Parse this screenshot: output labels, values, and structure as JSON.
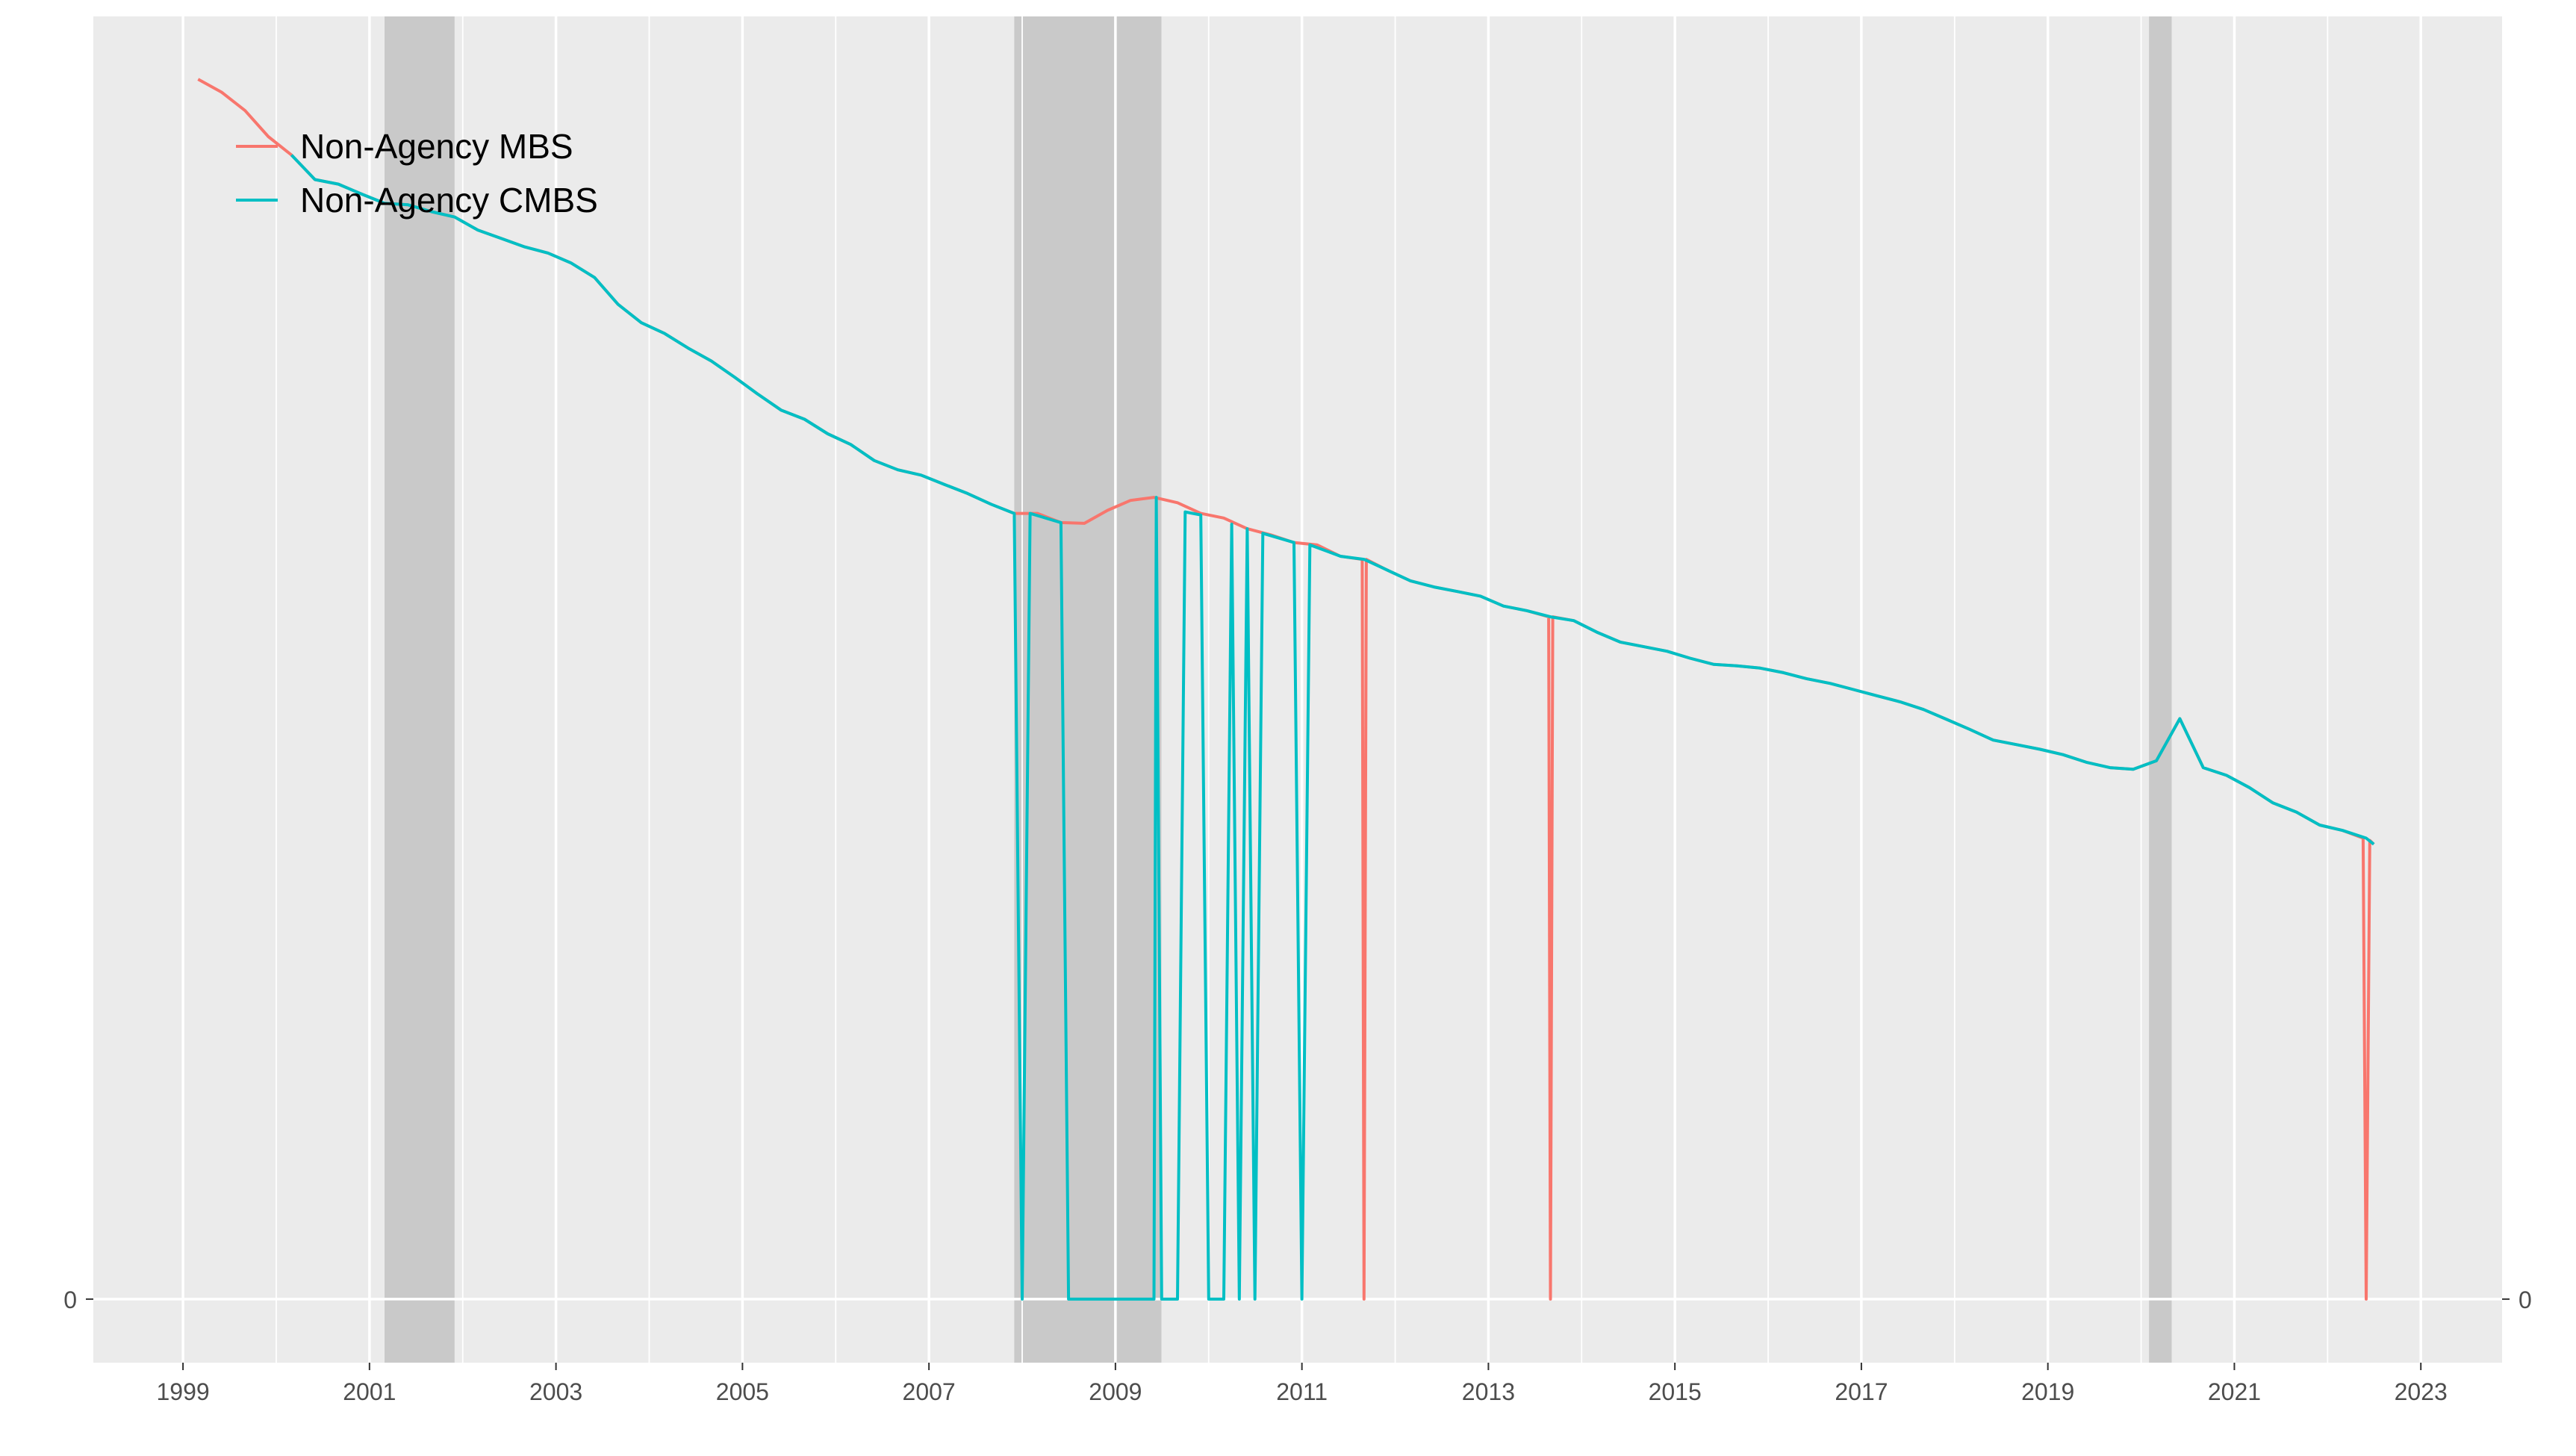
{
  "chart_data": {
    "type": "line",
    "title": "",
    "xlabel": "",
    "ylabel": "",
    "x_axis": {
      "min": "1998-01-15",
      "max": "2023-11-15",
      "ticks": [
        "1999",
        "2001",
        "2003",
        "2005",
        "2007",
        "2009",
        "2011",
        "2013",
        "2015",
        "2017",
        "2019",
        "2021",
        "2023"
      ]
    },
    "y_axis": {
      "min": -8.3,
      "max": 167.5,
      "ticks": [
        0
      ],
      "tick_labels": [
        "0"
      ],
      "secondary_tick_labels": [
        "0"
      ]
    },
    "grid": true,
    "legend": {
      "placement": "top-left",
      "entries": [
        {
          "label": "Non-Agency MBS",
          "color": "#F8766D"
        },
        {
          "label": "Non-Agency CMBS",
          "color": "#00BFC4"
        }
      ]
    },
    "recession_shading": [
      {
        "start": "2001-03-01",
        "end": "2001-11-30"
      },
      {
        "start": "2007-12-01",
        "end": "2009-06-30"
      },
      {
        "start": "2020-02-01",
        "end": "2020-04-30"
      }
    ],
    "series": [
      {
        "name": "Non-Agency MBS",
        "color": "#F8766D",
        "points": [
          [
            "1999-03-01",
            159.3
          ],
          [
            "1999-06-01",
            157.6
          ],
          [
            "1999-09-01",
            155.2
          ],
          [
            "1999-12-01",
            151.8
          ],
          [
            "2000-03-01",
            149.4
          ],
          [
            "2000-06-01",
            146.2
          ],
          [
            "2000-09-01",
            145.6
          ],
          [
            "2000-12-01",
            144.3
          ],
          [
            "2001-03-01",
            143.1
          ],
          [
            "2001-06-01",
            142.9
          ],
          [
            "2001-09-01",
            142.0
          ],
          [
            "2001-12-01",
            141.3
          ],
          [
            "2002-03-01",
            139.6
          ],
          [
            "2002-06-01",
            138.5
          ],
          [
            "2002-09-01",
            137.4
          ],
          [
            "2002-12-01",
            136.6
          ],
          [
            "2003-03-01",
            135.3
          ],
          [
            "2003-06-01",
            133.4
          ],
          [
            "2003-09-01",
            129.9
          ],
          [
            "2003-12-01",
            127.5
          ],
          [
            "2004-03-01",
            126.1
          ],
          [
            "2004-06-01",
            124.2
          ],
          [
            "2004-09-01",
            122.5
          ],
          [
            "2004-12-01",
            120.4
          ],
          [
            "2005-03-01",
            118.2
          ],
          [
            "2005-06-01",
            116.1
          ],
          [
            "2005-09-01",
            114.9
          ],
          [
            "2005-12-01",
            113.0
          ],
          [
            "2006-03-01",
            111.6
          ],
          [
            "2006-06-01",
            109.5
          ],
          [
            "2006-09-01",
            108.3
          ],
          [
            "2006-12-01",
            107.6
          ],
          [
            "2007-03-01",
            106.4
          ],
          [
            "2007-06-01",
            105.2
          ],
          [
            "2007-09-01",
            103.8
          ],
          [
            "2007-12-01",
            102.6
          ],
          [
            "2008-03-01",
            102.6
          ],
          [
            "2008-06-01",
            101.4
          ],
          [
            "2008-09-01",
            101.3
          ],
          [
            "2008-12-01",
            103.0
          ],
          [
            "2009-03-01",
            104.3
          ],
          [
            "2009-06-01",
            104.7
          ],
          [
            "2009-09-01",
            104.0
          ],
          [
            "2009-12-01",
            102.6
          ],
          [
            "2010-03-01",
            102.0
          ],
          [
            "2010-06-01",
            100.6
          ],
          [
            "2010-09-01",
            99.8
          ],
          [
            "2010-12-01",
            98.8
          ],
          [
            "2011-03-01",
            98.5
          ],
          [
            "2011-06-01",
            97.0
          ],
          [
            "2011-08-25",
            96.6
          ],
          [
            "2011-09-01",
            0.0
          ],
          [
            "2011-09-10",
            96.6
          ],
          [
            "2011-12-01",
            95.2
          ],
          [
            "2012-03-01",
            93.8
          ],
          [
            "2012-06-01",
            93.0
          ],
          [
            "2012-09-01",
            92.4
          ],
          [
            "2012-12-01",
            91.8
          ],
          [
            "2013-03-01",
            90.5
          ],
          [
            "2013-06-01",
            89.9
          ],
          [
            "2013-08-25",
            89.1
          ],
          [
            "2013-09-01",
            0.0
          ],
          [
            "2013-09-10",
            89.1
          ],
          [
            "2013-12-01",
            88.6
          ],
          [
            "2014-03-01",
            87.1
          ],
          [
            "2014-06-01",
            85.8
          ],
          [
            "2014-09-01",
            85.2
          ],
          [
            "2014-12-01",
            84.6
          ],
          [
            "2015-03-01",
            83.7
          ],
          [
            "2015-06-01",
            82.9
          ],
          [
            "2015-09-01",
            82.7
          ],
          [
            "2015-12-01",
            82.4
          ],
          [
            "2016-03-01",
            81.8
          ],
          [
            "2016-06-01",
            81.0
          ],
          [
            "2016-09-01",
            80.4
          ],
          [
            "2016-12-01",
            79.6
          ],
          [
            "2017-03-01",
            78.8
          ],
          [
            "2017-06-01",
            78.0
          ],
          [
            "2017-09-01",
            77.0
          ],
          [
            "2017-12-01",
            75.7
          ],
          [
            "2018-03-01",
            74.4
          ],
          [
            "2018-06-01",
            73.0
          ],
          [
            "2018-09-01",
            72.4
          ],
          [
            "2018-12-01",
            71.8
          ],
          [
            "2019-03-01",
            71.1
          ],
          [
            "2019-06-01",
            70.1
          ],
          [
            "2019-09-01",
            69.4
          ],
          [
            "2019-12-01",
            69.2
          ],
          [
            "2020-03-01",
            70.3
          ],
          [
            "2020-06-01",
            75.8
          ],
          [
            "2020-09-01",
            69.4
          ],
          [
            "2020-12-01",
            68.4
          ],
          [
            "2021-03-01",
            66.8
          ],
          [
            "2021-06-01",
            64.8
          ],
          [
            "2021-09-01",
            63.6
          ],
          [
            "2021-12-01",
            61.9
          ],
          [
            "2022-03-01",
            61.2
          ],
          [
            "2022-05-20",
            60.2
          ],
          [
            "2022-06-01",
            0.0
          ],
          [
            "2022-06-15",
            59.9
          ],
          [
            "2022-07-01",
            59.4
          ]
        ]
      },
      {
        "name": "Non-Agency CMBS",
        "color": "#00BFC4",
        "points": [
          [
            "2000-03-01",
            149.4
          ],
          [
            "2000-06-01",
            146.2
          ],
          [
            "2000-09-01",
            145.6
          ],
          [
            "2000-12-01",
            144.3
          ],
          [
            "2001-03-01",
            143.1
          ],
          [
            "2001-06-01",
            142.9
          ],
          [
            "2001-09-01",
            142.0
          ],
          [
            "2001-12-01",
            141.3
          ],
          [
            "2002-03-01",
            139.6
          ],
          [
            "2002-06-01",
            138.5
          ],
          [
            "2002-09-01",
            137.4
          ],
          [
            "2002-12-01",
            136.6
          ],
          [
            "2003-03-01",
            135.3
          ],
          [
            "2003-06-01",
            133.4
          ],
          [
            "2003-09-01",
            129.9
          ],
          [
            "2003-12-01",
            127.5
          ],
          [
            "2004-03-01",
            126.1
          ],
          [
            "2004-06-01",
            124.2
          ],
          [
            "2004-09-01",
            122.5
          ],
          [
            "2004-12-01",
            120.4
          ],
          [
            "2005-03-01",
            118.2
          ],
          [
            "2005-06-01",
            116.1
          ],
          [
            "2005-09-01",
            114.9
          ],
          [
            "2005-12-01",
            113.0
          ],
          [
            "2006-03-01",
            111.6
          ],
          [
            "2006-06-01",
            109.5
          ],
          [
            "2006-09-01",
            108.3
          ],
          [
            "2006-12-01",
            107.6
          ],
          [
            "2007-03-01",
            106.4
          ],
          [
            "2007-06-01",
            105.2
          ],
          [
            "2007-09-01",
            103.8
          ],
          [
            "2007-12-01",
            102.6
          ],
          [
            "2008-01-01",
            0.0
          ],
          [
            "2008-02-01",
            102.6
          ],
          [
            "2008-06-01",
            101.4
          ],
          [
            "2008-07-01",
            0.0
          ],
          [
            "2009-06-01",
            0.0
          ],
          [
            "2009-06-10",
            104.7
          ],
          [
            "2009-07-01",
            0.0
          ],
          [
            "2009-09-01",
            0.0
          ],
          [
            "2009-10-01",
            102.8
          ],
          [
            "2009-12-01",
            102.4
          ],
          [
            "2010-01-01",
            0.0
          ],
          [
            "2010-03-01",
            0.0
          ],
          [
            "2010-04-01",
            101.2
          ],
          [
            "2010-05-01",
            0.0
          ],
          [
            "2010-06-01",
            100.6
          ],
          [
            "2010-07-01",
            0.0
          ],
          [
            "2010-08-01",
            100.0
          ],
          [
            "2010-12-01",
            98.8
          ],
          [
            "2011-01-01",
            0.0
          ],
          [
            "2011-02-01",
            98.5
          ],
          [
            "2011-06-01",
            97.0
          ],
          [
            "2011-09-01",
            96.6
          ],
          [
            "2011-12-01",
            95.2
          ],
          [
            "2012-03-01",
            93.8
          ],
          [
            "2012-06-01",
            93.0
          ],
          [
            "2012-09-01",
            92.4
          ],
          [
            "2012-12-01",
            91.8
          ],
          [
            "2013-03-01",
            90.5
          ],
          [
            "2013-06-01",
            89.9
          ],
          [
            "2013-09-01",
            89.1
          ],
          [
            "2013-12-01",
            88.6
          ],
          [
            "2014-03-01",
            87.1
          ],
          [
            "2014-06-01",
            85.8
          ],
          [
            "2014-09-01",
            85.2
          ],
          [
            "2014-12-01",
            84.6
          ],
          [
            "2015-03-01",
            83.7
          ],
          [
            "2015-06-01",
            82.9
          ],
          [
            "2015-09-01",
            82.7
          ],
          [
            "2015-12-01",
            82.4
          ],
          [
            "2016-03-01",
            81.8
          ],
          [
            "2016-06-01",
            81.0
          ],
          [
            "2016-09-01",
            80.4
          ],
          [
            "2016-12-01",
            79.6
          ],
          [
            "2017-03-01",
            78.8
          ],
          [
            "2017-06-01",
            78.0
          ],
          [
            "2017-09-01",
            77.0
          ],
          [
            "2017-12-01",
            75.7
          ],
          [
            "2018-03-01",
            74.4
          ],
          [
            "2018-06-01",
            73.0
          ],
          [
            "2018-09-01",
            72.4
          ],
          [
            "2018-12-01",
            71.8
          ],
          [
            "2019-03-01",
            71.1
          ],
          [
            "2019-06-01",
            70.1
          ],
          [
            "2019-09-01",
            69.4
          ],
          [
            "2019-12-01",
            69.2
          ],
          [
            "2020-03-01",
            70.3
          ],
          [
            "2020-06-01",
            75.8
          ],
          [
            "2020-09-01",
            69.4
          ],
          [
            "2020-12-01",
            68.4
          ],
          [
            "2021-03-01",
            66.8
          ],
          [
            "2021-06-01",
            64.8
          ],
          [
            "2021-09-01",
            63.6
          ],
          [
            "2021-12-01",
            61.9
          ],
          [
            "2022-03-01",
            61.2
          ],
          [
            "2022-06-01",
            60.2
          ],
          [
            "2022-07-01",
            59.4
          ]
        ]
      }
    ]
  }
}
